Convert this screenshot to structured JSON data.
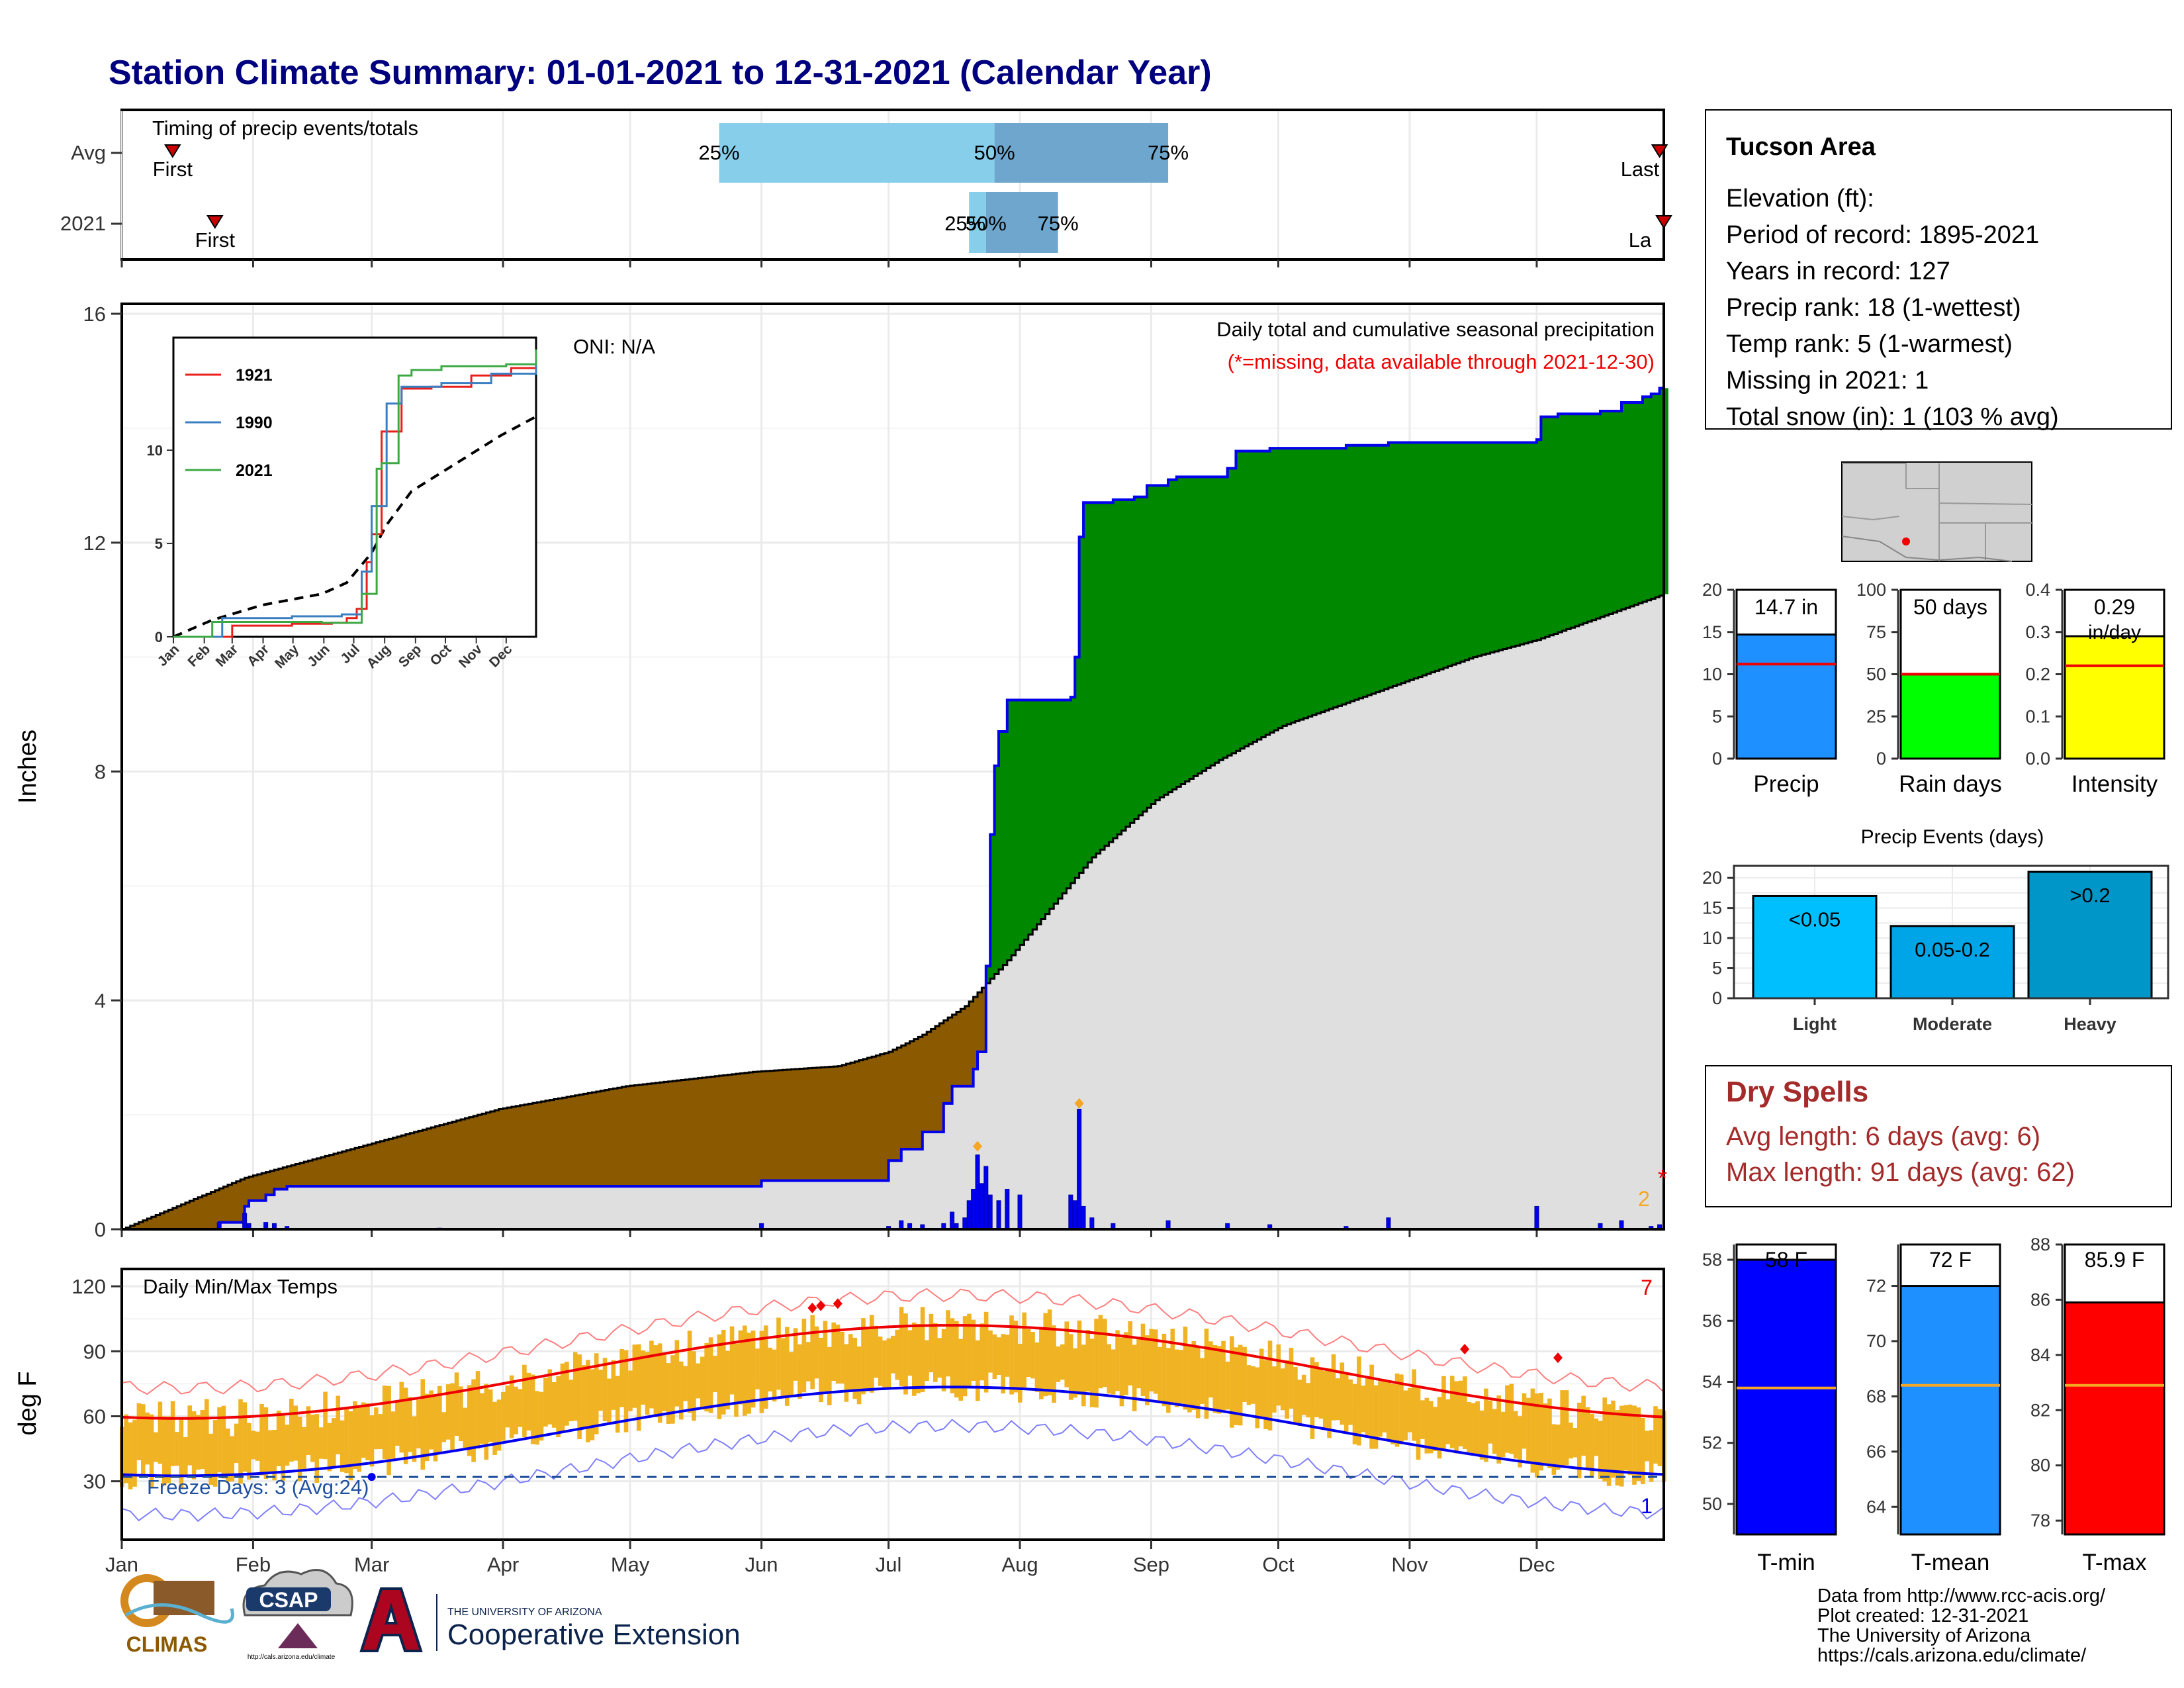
{
  "title": "Station Climate Summary: 01-01-2021 to 12-31-2021 (Calendar Year)",
  "timing": {
    "label": "Timing of precip events/totals",
    "rows": [
      {
        "name": "Avg",
        "first_day": 13,
        "last_day": 364,
        "p25_day": 142,
        "p50_day": 207,
        "p75_day": 248
      },
      {
        "name": "2021",
        "first_day": 23,
        "last_day": 365,
        "p25_day": 201,
        "p50_day": 205,
        "p75_day": 222
      }
    ],
    "first_label": "First",
    "last_label": "Last",
    "last_label_2021": "La",
    "pct_labels": [
      "25%",
      "50%",
      "75%"
    ]
  },
  "precip_panel": {
    "ylabel": "Inches",
    "yticks": [
      0,
      4,
      8,
      12,
      16
    ],
    "oni": "ONI: N/A",
    "note1": "Daily total and cumulative seasonal precipitation",
    "note2": "(*=missing, data available through 2021-12-30)",
    "missing_count": "2",
    "missing_mark": "*",
    "colors": {
      "deficit": "#8B5A00",
      "surplus": "#008800",
      "normal_fill": "#DFDFDF",
      "obs_line": "#0000EE"
    }
  },
  "inset": {
    "yticks": [
      0,
      5,
      10
    ],
    "xlabels": [
      "Jan",
      "Feb",
      "Mar",
      "Apr",
      "May",
      "Jun",
      "Jul",
      "Aug",
      "Sep",
      "Oct",
      "Nov",
      "Dec"
    ],
    "legend": [
      {
        "name": "1921",
        "color": "#E8201C"
      },
      {
        "name": "1990",
        "color": "#3A7FC1"
      },
      {
        "name": "2021",
        "color": "#3CA844"
      }
    ]
  },
  "temp_panel": {
    "label": "Daily Min/Max Temps",
    "ylabel": "deg F",
    "yticks": [
      30,
      60,
      90,
      120
    ],
    "freeze_label": "Freeze Days: 3 (Avg:24)",
    "freeze_line": 32,
    "count_hot": "7",
    "count_cold": "1"
  },
  "months": [
    "Jan",
    "Feb",
    "Mar",
    "Apr",
    "May",
    "Jun",
    "Jul",
    "Aug",
    "Sep",
    "Oct",
    "Nov",
    "Dec"
  ],
  "station": {
    "name": "Tucson Area",
    "lines": [
      "Elevation (ft):",
      "Period of record: 1895-2021",
      "Years in record: 127",
      "Precip rank: 18 (1-wettest)",
      "Temp rank: 5 (1-warmest)",
      "Missing in 2021: 1",
      "Total snow (in): 1 (103 % avg)"
    ]
  },
  "bars": [
    {
      "label": "Precip",
      "value_label": "14.7 in",
      "value": 14.7,
      "avg": 11.2,
      "ymax": 20,
      "ticks": [
        0,
        5,
        10,
        15,
        20
      ],
      "color": "#1E90FF"
    },
    {
      "label": "Rain days",
      "value_label": "50 days",
      "value": 50,
      "avg": 50,
      "ymax": 100,
      "ticks": [
        0,
        25,
        50,
        75,
        100
      ],
      "color": "#00FF00"
    },
    {
      "label": "Intensity",
      "value_label": "0.29",
      "value_label2": "in/day",
      "value": 0.29,
      "avg": 0.22,
      "ymax": 0.4,
      "ticks": [
        "0.0",
        "0.1",
        "0.2",
        "0.3",
        "0.4"
      ],
      "color": "#FFFF00"
    }
  ],
  "events": {
    "title": "Precip Events (days)",
    "categories": [
      "Light",
      "Moderate",
      "Heavy"
    ],
    "bin_labels": [
      "<0.05",
      "0.05-0.2",
      ">0.2"
    ],
    "values": [
      17,
      12,
      21
    ],
    "yticks": [
      0,
      5,
      10,
      15,
      20
    ],
    "colors": [
      "#00BFFF",
      "#00A5E8",
      "#0096C8"
    ]
  },
  "dry": {
    "title": "Dry Spells",
    "avg": "Avg length: 6 days (avg: 6)",
    "max": "Max length: 91 days (avg: 62)"
  },
  "temps": [
    {
      "label": "T-min",
      "value_label": "58 F",
      "value": 58,
      "avg": 53.8,
      "ymin": 49,
      "ymax": 58.5,
      "ticks": [
        50,
        52,
        54,
        56,
        58
      ],
      "color": "#0000FF"
    },
    {
      "label": "T-mean",
      "value_label": "72 F",
      "value": 72,
      "avg": 68.4,
      "ymin": 63,
      "ymax": 73.5,
      "ticks": [
        64,
        66,
        68,
        70,
        72
      ],
      "color": "#1E90FF"
    },
    {
      "label": "T-max",
      "value_label": "85.9 F",
      "value": 85.9,
      "avg": 82.9,
      "ymin": 77.5,
      "ymax": 88,
      "ticks": [
        78,
        80,
        82,
        84,
        86,
        88
      ],
      "color": "#FF0000"
    }
  ],
  "footer": {
    "lines": [
      "Data from http://www.rcc-acis.org/",
      "Plot created: 12-31-2021",
      "The University of Arizona",
      "https://cals.arizona.edu/climate/"
    ],
    "logo_climas": "CLIMAS",
    "logo_csap": "CSAP",
    "csap_url": "http://cals.arizona.edu/climate",
    "ua_small": "THE UNIVERSITY OF ARIZONA",
    "ua_large": "Cooperative Extension"
  }
}
